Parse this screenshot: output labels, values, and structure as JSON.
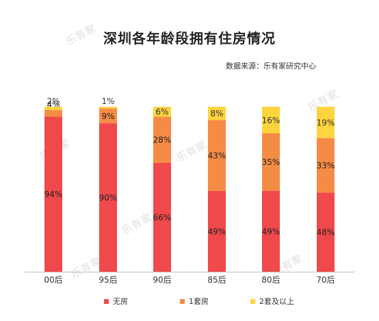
{
  "title": "深圳各年龄段拥有住房情况",
  "source": "数据来源：乐有家研究中心",
  "watermark": "乐有家",
  "chart_data": {
    "type": "bar",
    "stacked": true,
    "normalized": true,
    "categories": [
      "00后",
      "95后",
      "90后",
      "85后",
      "80后",
      "70后"
    ],
    "series": [
      {
        "name": "无房",
        "color": "#f0494b",
        "values": [
          94,
          90,
          66,
          49,
          49,
          48
        ]
      },
      {
        "name": "1套房",
        "color": "#f58c46",
        "values": [
          4,
          9,
          28,
          43,
          35,
          33
        ]
      },
      {
        "name": "2套及以上",
        "color": "#fed43f",
        "values": [
          2,
          1,
          6,
          8,
          16,
          19
        ]
      }
    ],
    "value_suffix": "%",
    "ylim": [
      0,
      100
    ],
    "grid": false,
    "legend_position": "bottom"
  }
}
